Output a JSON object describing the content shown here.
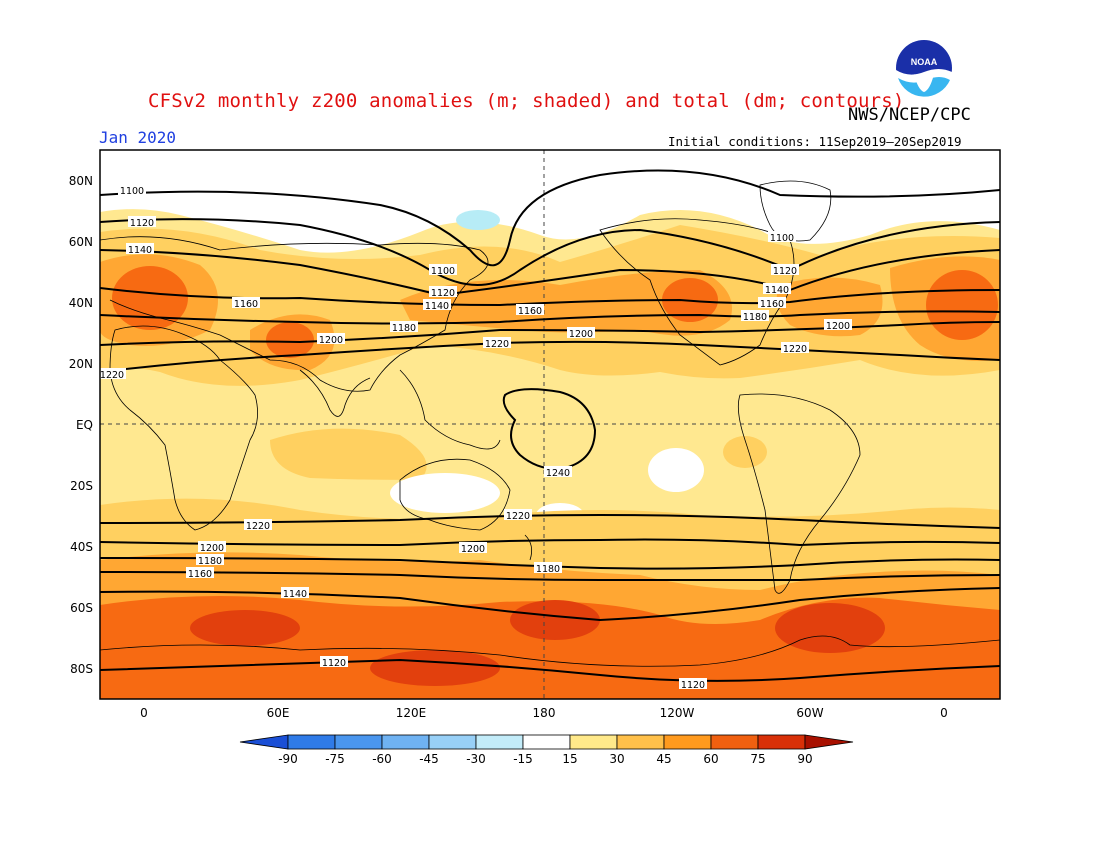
{
  "header": {
    "title": "CFSv2 monthly z200 anomalies (m; shaded) and total (dm; contours)",
    "agency": "NWS/NCEP/CPC",
    "month": "Jan 2020",
    "initial_conditions": "Initial conditions: 11Sep2019–20Sep2019",
    "logo_text": "NOAA"
  },
  "axes": {
    "lat_labels": [
      "80N",
      "60N",
      "40N",
      "20N",
      "EQ",
      "20S",
      "40S",
      "60S",
      "80S"
    ],
    "lon_labels": [
      "0",
      "60E",
      "120E",
      "180",
      "120W",
      "60W",
      "0"
    ]
  },
  "contours": [
    {
      "level": "1100",
      "labels": [
        "1100",
        "1100",
        "1100"
      ]
    },
    {
      "level": "1120",
      "labels": [
        "1120",
        "1120",
        "1120",
        "1120",
        "1120"
      ]
    },
    {
      "level": "1140",
      "labels": [
        "1140",
        "1140",
        "1140",
        "1140"
      ]
    },
    {
      "level": "1160",
      "labels": [
        "1160",
        "1160",
        "1160",
        "1160"
      ]
    },
    {
      "level": "1180",
      "labels": [
        "1180",
        "1180",
        "1180",
        "1180"
      ]
    },
    {
      "level": "1200",
      "labels": [
        "1200",
        "1200",
        "1200",
        "1200",
        "1200"
      ]
    },
    {
      "level": "1220",
      "labels": [
        "1220",
        "1220",
        "1220",
        "1220",
        "1220"
      ]
    },
    {
      "level": "1240",
      "labels": [
        "1240"
      ]
    }
  ],
  "colorbar": {
    "labels": [
      "-90",
      "-75",
      "-60",
      "-45",
      "-30",
      "-15",
      "15",
      "30",
      "45",
      "60",
      "75",
      "90"
    ],
    "colors": [
      "#1a4fd6",
      "#2f7be8",
      "#4a96ee",
      "#6fb2f2",
      "#98d0f7",
      "#c3ecf9",
      "#ffffff",
      "#ffe98a",
      "#ffc04a",
      "#ff9a1e",
      "#f06010",
      "#d83008",
      "#a81000"
    ]
  },
  "shading": {
    "base": "#ffe890",
    "light": "#ffd060",
    "medium": "#ffa733",
    "strong": "#f76a12",
    "max": "#e2400d",
    "neutral": "#ffffff",
    "negative": "#b7ecf6"
  }
}
